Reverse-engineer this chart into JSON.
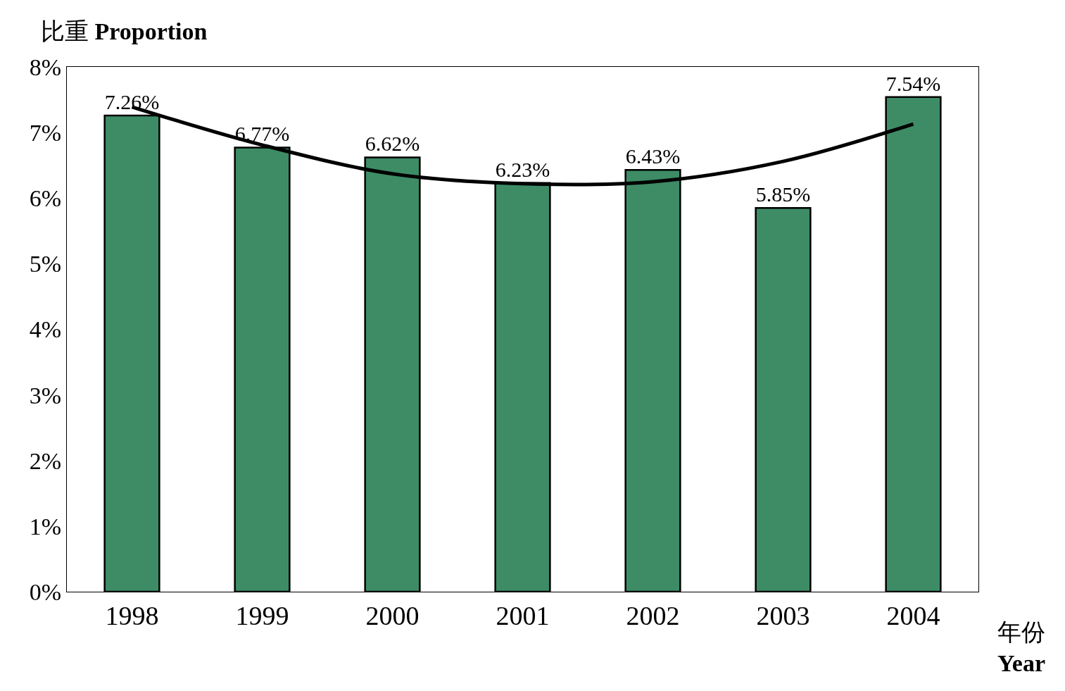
{
  "chart_data": {
    "type": "bar",
    "xlabel": "年份 Year",
    "ylabel": "比重 Proportion",
    "categories": [
      "1998",
      "1999",
      "2000",
      "2001",
      "2002",
      "2003",
      "2004"
    ],
    "series": [
      {
        "color": "#3d8c66",
        "values": [
          7.26,
          6.77,
          6.62,
          6.23,
          6.43,
          5.85,
          7.54
        ],
        "value_labels": [
          "7.26%",
          "6.77%",
          "6.62%",
          "6.23%",
          "6.43%",
          "5.85%",
          "7.54%"
        ]
      },
      {
        "type": "line",
        "color": "#000000",
        "values": [
          7.39,
          6.81,
          6.37,
          6.22,
          6.25,
          6.56,
          7.13
        ]
      }
    ],
    "ylim": [
      0,
      8
    ],
    "yticks": [
      {
        "value": 0,
        "label": "0%"
      },
      {
        "value": 1,
        "label": "1%"
      },
      {
        "value": 2,
        "label": "2%"
      },
      {
        "value": 3,
        "label": "3%"
      },
      {
        "value": 4,
        "label": "4%"
      },
      {
        "value": 5,
        "label": "5%"
      },
      {
        "value": 6,
        "label": "6%"
      },
      {
        "value": 7,
        "label": "7%"
      },
      {
        "value": 8,
        "label": "8%"
      }
    ]
  }
}
